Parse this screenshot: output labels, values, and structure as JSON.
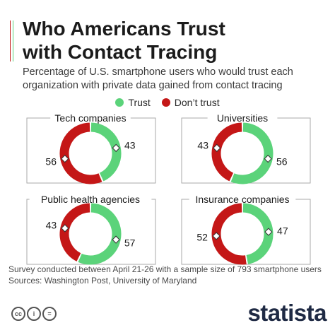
{
  "header": {
    "title_line1": "Who Americans Trust",
    "title_line2": "with Contact Tracing",
    "subtitle_line1": "Percentage of U.S. smartphone users who would trust each",
    "subtitle_line2": "organization with private data gained from contact tracing"
  },
  "colors": {
    "trust": "#5bd37a",
    "dont_trust": "#c41717",
    "accent_red": "#c41717",
    "accent_green": "#5bd37a",
    "box_border": "#a9a9a9"
  },
  "chart_data": [
    {
      "type": "pie",
      "title": "Tech companies",
      "categories": [
        "Trust",
        "Don't trust"
      ],
      "values": [
        43,
        56
      ]
    },
    {
      "type": "pie",
      "title": "Universities",
      "categories": [
        "Trust",
        "Don't trust"
      ],
      "values": [
        56,
        43
      ]
    },
    {
      "type": "pie",
      "title": "Public health agencies",
      "categories": [
        "Trust",
        "Don't trust"
      ],
      "values": [
        57,
        43
      ]
    },
    {
      "type": "pie",
      "title": "Insurance companies",
      "categories": [
        "Trust",
        "Don't trust"
      ],
      "values": [
        47,
        52
      ]
    }
  ],
  "legend": {
    "placement": "top-center",
    "trust_label": "Trust",
    "dont_trust_label": "Don’t trust"
  },
  "footer": {
    "survey_note": "Survey conducted between April 21-26 with a sample size of 793 smartphone users",
    "sources": "Sources: Washington Post, University of Maryland"
  },
  "license_icons": [
    "cc-icon",
    "info-icon",
    "equals-icon"
  ],
  "brand": "statista"
}
